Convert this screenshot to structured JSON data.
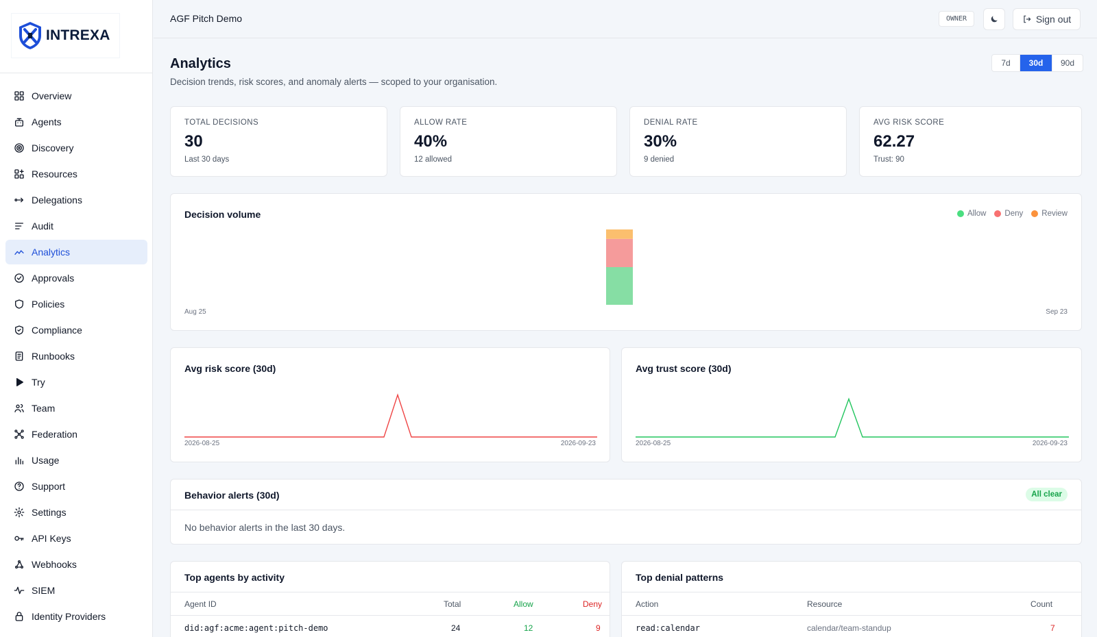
{
  "brand": {
    "name": "INTREXA"
  },
  "sidebar": {
    "items": [
      {
        "label": "Overview",
        "icon": "grid-icon"
      },
      {
        "label": "Agents",
        "icon": "bot-icon"
      },
      {
        "label": "Discovery",
        "icon": "target-icon"
      },
      {
        "label": "Resources",
        "icon": "blocks-icon"
      },
      {
        "label": "Delegations",
        "icon": "arrow-right-icon"
      },
      {
        "label": "Audit",
        "icon": "lines-icon"
      },
      {
        "label": "Analytics",
        "icon": "trend-icon",
        "active": true
      },
      {
        "label": "Approvals",
        "icon": "check-circle-icon"
      },
      {
        "label": "Policies",
        "icon": "shield-icon"
      },
      {
        "label": "Compliance",
        "icon": "shield-check-icon"
      },
      {
        "label": "Runbooks",
        "icon": "book-icon"
      },
      {
        "label": "Try",
        "icon": "play-icon"
      },
      {
        "label": "Team",
        "icon": "users-icon"
      },
      {
        "label": "Federation",
        "icon": "network-icon"
      },
      {
        "label": "Usage",
        "icon": "bar-chart-icon"
      },
      {
        "label": "Support",
        "icon": "help-icon"
      },
      {
        "label": "Settings",
        "icon": "gear-icon"
      },
      {
        "label": "API Keys",
        "icon": "key-icon"
      },
      {
        "label": "Webhooks",
        "icon": "webhook-icon"
      },
      {
        "label": "SIEM",
        "icon": "pulse-icon"
      },
      {
        "label": "Identity Providers",
        "icon": "lock-icon"
      }
    ]
  },
  "topbar": {
    "org_name": "AGF Pitch Demo",
    "role": "OWNER",
    "sign_out": "Sign out"
  },
  "page": {
    "title": "Analytics",
    "subtitle": "Decision trends, risk scores, and anomaly alerts — scoped to your organisation.",
    "ranges": [
      "7d",
      "30d",
      "90d"
    ],
    "active_range": "30d"
  },
  "kpis": [
    {
      "label": "Total decisions",
      "value": "30",
      "sub": "Last 30 days"
    },
    {
      "label": "Allow rate",
      "value": "40%",
      "sub": "12 allowed"
    },
    {
      "label": "Denial rate",
      "value": "30%",
      "sub": "9 denied"
    },
    {
      "label": "Avg risk score",
      "value": "62.27",
      "sub": "Trust: 90"
    }
  ],
  "colors": {
    "allow": "#86dea4",
    "deny": "#f59b9b",
    "review": "#fbbf6e",
    "allow_dot": "#4ade80",
    "deny_dot": "#f87171",
    "review_dot": "#fb923c",
    "risk_line": "#ef4444",
    "trust_line": "#22c55e",
    "accent": "#2563eb"
  },
  "decision_volume": {
    "title": "Decision volume",
    "legend": [
      "Allow",
      "Deny",
      "Review"
    ],
    "x_start": "Aug 25",
    "x_end": "Sep 23"
  },
  "risk_chart": {
    "title": "Avg risk score (30d)",
    "x_start": "2026-08-25",
    "x_end": "2026-09-23"
  },
  "trust_chart": {
    "title": "Avg trust score (30d)",
    "x_start": "2026-08-25",
    "x_end": "2026-09-23"
  },
  "chart_data": [
    {
      "type": "bar",
      "title": "Decision volume",
      "stacked": true,
      "x_range": [
        "Aug 25",
        "Sep 23"
      ],
      "day_count": 30,
      "active_day_index": 15,
      "series": [
        {
          "name": "Allow",
          "values": [
            12
          ]
        },
        {
          "name": "Deny",
          "values": [
            9
          ]
        },
        {
          "name": "Review",
          "values": [
            3
          ]
        }
      ],
      "legend_position": "top-right"
    },
    {
      "type": "line",
      "title": "Avg risk score (30d)",
      "x_range": [
        "2026-08-25",
        "2026-09-23"
      ],
      "values": [
        0,
        0,
        0,
        0,
        0,
        0,
        0,
        0,
        0,
        0,
        0,
        0,
        0,
        0,
        0,
        62.27,
        0,
        0,
        0,
        0,
        0,
        0,
        0,
        0,
        0,
        0,
        0,
        0,
        0,
        0
      ],
      "ylim": [
        0,
        75
      ]
    },
    {
      "type": "line",
      "title": "Avg trust score (30d)",
      "x_range": [
        "2026-08-25",
        "2026-09-23"
      ],
      "values": [
        0,
        0,
        0,
        0,
        0,
        0,
        0,
        0,
        0,
        0,
        0,
        0,
        0,
        0,
        0,
        90,
        0,
        0,
        0,
        0,
        0,
        0,
        0,
        0,
        0,
        0,
        0,
        0,
        0,
        0
      ],
      "ylim": [
        0,
        120
      ]
    }
  ],
  "alerts": {
    "title": "Behavior alerts (30d)",
    "badge": "All clear",
    "empty": "No behavior alerts in the last 30 days."
  },
  "top_agents": {
    "title": "Top agents by activity",
    "columns": [
      "Agent ID",
      "Total",
      "Allow",
      "Deny"
    ],
    "rows": [
      {
        "agent": "did:agf:acme:agent:pitch-demo",
        "total": "24",
        "allow": "12",
        "deny": "9"
      }
    ]
  },
  "denial_patterns": {
    "title": "Top denial patterns",
    "columns": [
      "Action",
      "Resource",
      "Count"
    ],
    "rows": [
      {
        "action": "read:calendar",
        "resource": "calendar/team-standup",
        "count": "7"
      }
    ]
  }
}
